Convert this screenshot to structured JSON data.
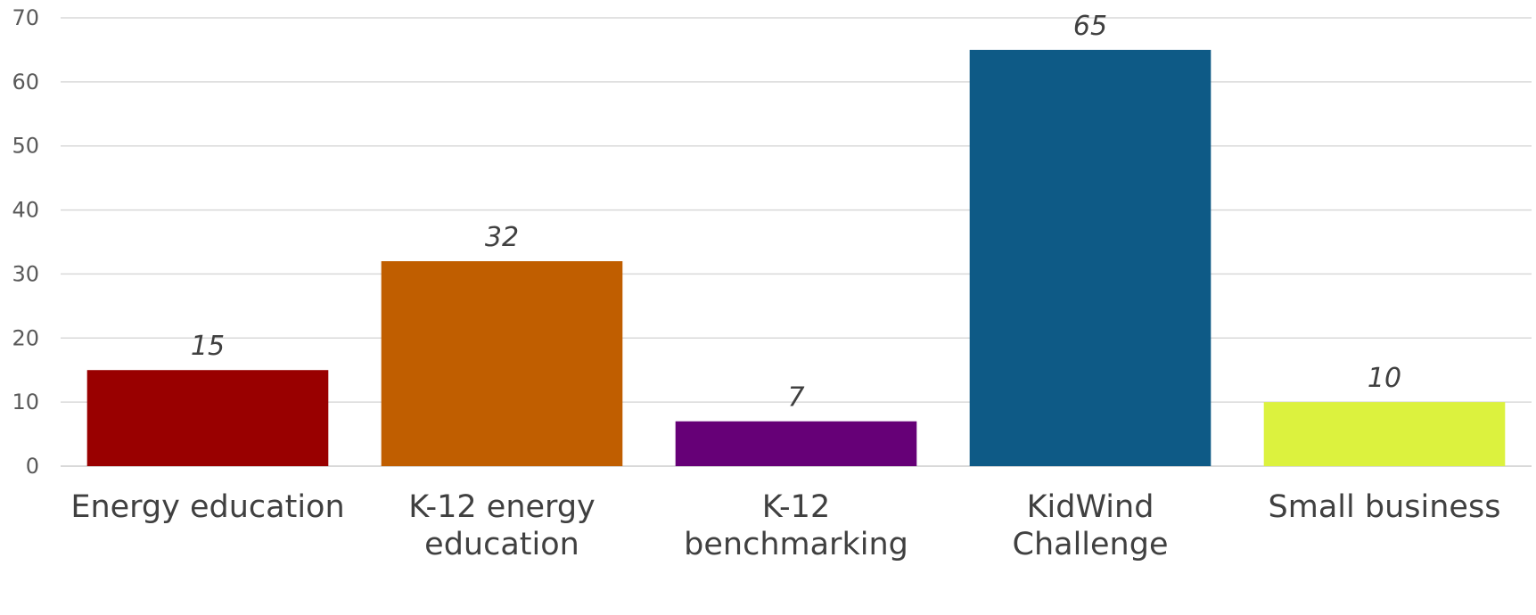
{
  "chart_data": {
    "type": "bar",
    "categories": [
      [
        "Energy education"
      ],
      [
        "K-12 energy",
        "education"
      ],
      [
        "K-12",
        "benchmarking"
      ],
      [
        "KidWind",
        "Challenge"
      ],
      [
        "Small business"
      ]
    ],
    "values": [
      15,
      32,
      7,
      65,
      10
    ],
    "data_labels": [
      "15",
      "32",
      "7",
      "65",
      "10"
    ],
    "bar_colors": [
      "#990000",
      "#C05E00",
      "#660077",
      "#0E5A86",
      "#DCF23E"
    ],
    "title": "",
    "xlabel": "",
    "ylabel": "",
    "ylim": [
      0,
      70
    ],
    "yticks": [
      "0",
      "10",
      "20",
      "30",
      "40",
      "50",
      "60",
      "70"
    ],
    "grid": true,
    "legend": "none"
  }
}
